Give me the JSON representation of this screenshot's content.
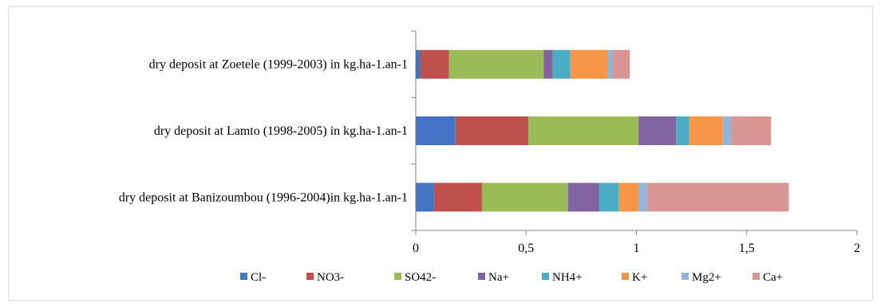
{
  "chart_data": {
    "type": "bar",
    "orientation": "horizontal",
    "stacked": true,
    "title": "",
    "xlabel": "",
    "ylabel": "",
    "xlim": [
      0,
      2
    ],
    "x_ticks": [
      "0",
      "0,5",
      "1",
      "1,5",
      "2"
    ],
    "x_tick_values": [
      0,
      0.5,
      1,
      1.5,
      2
    ],
    "grid": false,
    "legend_position": "bottom",
    "categories": [
      "dry deposit at Zoetele (1999-2003) in kg.ha-1.an-1",
      "dry deposit at Lamto (1998-2005) in kg.ha-1.an-1",
      "dry deposit at Banizoumbou (1996-2004)in kg.ha-1.an-1"
    ],
    "series": [
      {
        "name": "Cl-",
        "color": "#4472c4",
        "values": [
          0.02,
          0.18,
          0.08
        ]
      },
      {
        "name": "NO3-",
        "color": "#c0504d",
        "values": [
          0.13,
          0.33,
          0.22
        ]
      },
      {
        "name": "SO42-",
        "color": "#9bbb59",
        "values": [
          0.43,
          0.5,
          0.39
        ]
      },
      {
        "name": "Na+",
        "color": "#8064a2",
        "values": [
          0.04,
          0.17,
          0.14
        ]
      },
      {
        "name": "NH4+",
        "color": "#4bacc6",
        "values": [
          0.08,
          0.06,
          0.09
        ]
      },
      {
        "name": "K+",
        "color": "#f79646",
        "values": [
          0.17,
          0.15,
          0.09
        ]
      },
      {
        "name": "Mg2+",
        "color": "#95b3d7",
        "values": [
          0.02,
          0.04,
          0.04
        ]
      },
      {
        "name": "Ca+",
        "color": "#d99594",
        "values": [
          0.08,
          0.18,
          0.64
        ]
      }
    ]
  }
}
